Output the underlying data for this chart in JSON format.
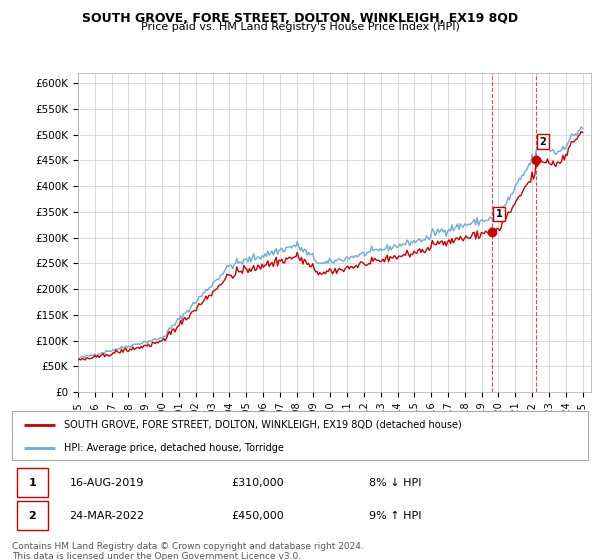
{
  "title": "SOUTH GROVE, FORE STREET, DOLTON, WINKLEIGH, EX19 8QD",
  "subtitle": "Price paid vs. HM Land Registry's House Price Index (HPI)",
  "ylim": [
    0,
    620000
  ],
  "xlim_start": 1995.0,
  "xlim_end": 2025.5,
  "hpi_color": "#6aaed6",
  "price_color": "#cc0000",
  "marker1_date": 2019.62,
  "marker1_price": 310000,
  "marker2_date": 2022.23,
  "marker2_price": 450000,
  "transaction1_label": "16-AUG-2019",
  "transaction1_price": "£310,000",
  "transaction1_hpi": "8% ↓ HPI",
  "transaction2_label": "24-MAR-2022",
  "transaction2_price": "£450,000",
  "transaction2_hpi": "9% ↑ HPI",
  "legend_line1": "SOUTH GROVE, FORE STREET, DOLTON, WINKLEIGH, EX19 8QD (detached house)",
  "legend_line2": "HPI: Average price, detached house, Torridge",
  "footer": "Contains HM Land Registry data © Crown copyright and database right 2024.\nThis data is licensed under the Open Government Licence v3.0.",
  "background_color": "#ffffff",
  "grid_color": "#cccccc"
}
